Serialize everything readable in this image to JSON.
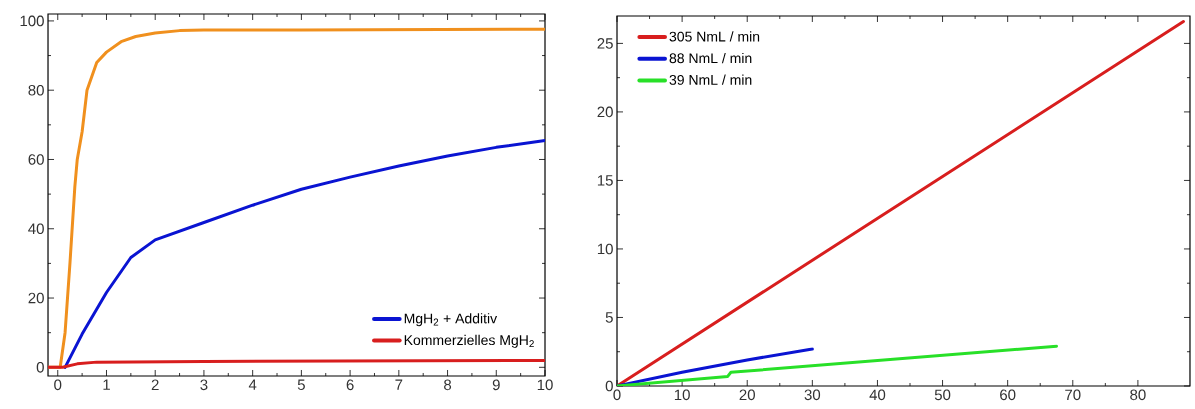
{
  "chart_data": [
    {
      "type": "line",
      "xlim": [
        -0.2,
        10
      ],
      "ylim": [
        -2.5,
        102
      ],
      "xticks": [
        0,
        1,
        2,
        3,
        4,
        5,
        6,
        7,
        8,
        9,
        10
      ],
      "yticks": [
        0,
        20,
        40,
        60,
        80,
        100
      ],
      "legend": "bottom right",
      "series": [
        {
          "color": "#f0901e",
          "x": [
            -0.2,
            0.05,
            0.15,
            0.25,
            0.35,
            0.4,
            0.5,
            0.6,
            0.8,
            1,
            1.3,
            1.6,
            2,
            2.5,
            3,
            5,
            10
          ],
          "values": [
            0,
            0,
            10,
            30,
            52,
            60,
            68,
            80,
            88,
            91,
            94,
            95.5,
            96.5,
            97.2,
            97.4,
            97.4,
            97.6
          ]
        },
        {
          "name": "MgH$_{2}$ + Additiv",
          "color": "#0a14d2",
          "x": [
            0.15,
            0.5,
            1,
            1.5,
            2,
            3,
            4,
            5,
            6,
            7,
            8,
            9,
            10
          ],
          "values": [
            0,
            9.6,
            21.6,
            31.7,
            36.8,
            41.8,
            46.8,
            51.4,
            54.9,
            58.1,
            61,
            63.5,
            65.5
          ]
        },
        {
          "name": "Kommerzielles MgH$_{2}$",
          "color": "#d81e1e",
          "x": [
            -0.2,
            0.1,
            0.4,
            0.8,
            3,
            10
          ],
          "values": [
            0,
            0,
            1,
            1.5,
            1.7,
            2
          ]
        }
      ]
    },
    {
      "type": "line",
      "xlim": [
        0,
        88
      ],
      "ylim": [
        0,
        27
      ],
      "xticks": [
        0,
        10,
        20,
        30,
        40,
        50,
        60,
        70,
        80
      ],
      "yticks": [
        0,
        5,
        10,
        15,
        20,
        25
      ],
      "legend": "top left",
      "series": [
        {
          "name": "305 NmL / min",
          "color": "#d81e1e",
          "x": [
            0,
            87
          ],
          "values": [
            0,
            26.6
          ]
        },
        {
          "name": "88 NmL / min",
          "color": "#0a14d2",
          "x": [
            0,
            10,
            20,
            30
          ],
          "values": [
            0,
            1,
            1.9,
            2.7
          ]
        },
        {
          "name": "39 NmL / min",
          "color": "#28e028",
          "x": [
            0,
            17,
            17.5,
            67.5
          ],
          "values": [
            0,
            0.7,
            1.0,
            2.9
          ]
        }
      ]
    }
  ]
}
